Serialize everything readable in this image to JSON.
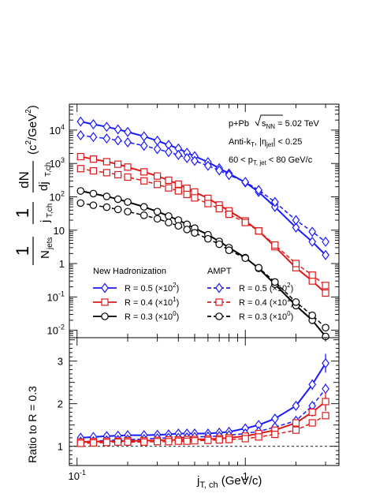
{
  "chart_data": [
    {
      "type": "line",
      "panel": "top",
      "x": [
        0.105,
        0.125,
        0.15,
        0.175,
        0.2,
        0.25,
        0.3,
        0.35,
        0.4,
        0.45,
        0.5,
        0.6,
        0.7,
        0.8,
        1.0,
        1.2,
        1.5,
        2.0,
        2.5,
        3.0
      ],
      "xscale": "log",
      "yscale": "log",
      "xlim": [
        0.09,
        3.6
      ],
      "ylim": [
        0.006,
        60000
      ],
      "ylabel_parts": {
        "one": "1",
        "njets": "N",
        "njets_sub": "jets",
        "j": "j",
        "j_sub": "T,ch",
        "dn": "dN",
        "dj": "dj",
        "dj_sub": "T,ch",
        "units": "(c",
        "units_sup": "2",
        "units_mid": "/GeV",
        "units_sup2": "2",
        "units_end": ")"
      },
      "yticks": [
        {
          "value": 0.01,
          "base": "10",
          "exp": "-2"
        },
        {
          "value": 0.1,
          "base": "10",
          "exp": "-1"
        },
        {
          "value": 1,
          "base": "1",
          "exp": ""
        },
        {
          "value": 10,
          "base": "10",
          "exp": ""
        },
        {
          "value": 100,
          "base": "10",
          "exp": "2"
        },
        {
          "value": 1000,
          "base": "10",
          "exp": "3"
        },
        {
          "value": 10000,
          "base": "10",
          "exp": "4"
        }
      ],
      "annotations": {
        "system": "p+Pb",
        "sqrt_label": "s",
        "sqrt_sub": "NN",
        "energy": "= 5.02 TeV",
        "algo": "Anti-k",
        "algo_sub": "T",
        "eta_open": ", |η",
        "eta_sub": "jet",
        "eta_close": "| < 0.25",
        "pt_low": "60 < p",
        "pt_sub": "T, jet",
        "pt_high": "< 80 GeV/c"
      },
      "legend": {
        "group_a": "New Hadronization",
        "group_b": "AMPT",
        "entries_a": [
          {
            "label": "R = 0.5 (×10",
            "sup": "2",
            "close": ")"
          },
          {
            "label": "R = 0.4 (×10",
            "sup": "1",
            "close": ")"
          },
          {
            "label": "R = 0.3 (×10",
            "sup": "0",
            "close": ")"
          }
        ],
        "entries_b": [
          {
            "label": "R = 0.5 (×10",
            "sup": "2",
            "close": ")"
          },
          {
            "label": "R = 0.4 (×10",
            "sup": "1",
            "close": ")"
          },
          {
            "label": "R = 0.3 (×10",
            "sup": "0",
            "close": ")"
          }
        ]
      },
      "series": [
        {
          "model": "New Hadronization",
          "R": "0.5",
          "color": "#1a1aff",
          "marker": "diamond",
          "dashed": false,
          "values": [
            18000,
            15000,
            12500,
            10500,
            8800,
            6500,
            4800,
            3600,
            2800,
            2100,
            1650,
            1100,
            720,
            500,
            270,
            140,
            50,
            12,
            4.5,
            1.8
          ]
        },
        {
          "model": "AMPT",
          "R": "0.5",
          "color": "#1a1aff",
          "marker": "diamond",
          "dashed": true,
          "values": [
            7000,
            6200,
            5600,
            4900,
            4300,
            3400,
            2700,
            2200,
            1800,
            1450,
            1200,
            850,
            620,
            450,
            280,
            160,
            70,
            20,
            9,
            4.5
          ]
        },
        {
          "model": "New Hadronization",
          "R": "0.4",
          "color": "#e01818",
          "marker": "square",
          "dashed": false,
          "values": [
            1600,
            1350,
            1130,
            950,
            780,
            560,
            420,
            315,
            240,
            180,
            140,
            90,
            57,
            38,
            19,
            9.5,
            3.2,
            0.75,
            0.3,
            0.13
          ]
        },
        {
          "model": "AMPT",
          "R": "0.4",
          "color": "#e01818",
          "marker": "square",
          "dashed": true,
          "values": [
            700,
            600,
            530,
            460,
            390,
            300,
            235,
            185,
            150,
            118,
            93,
            63,
            44,
            30,
            17,
            9.5,
            3.6,
            1.0,
            0.45,
            0.22
          ]
        },
        {
          "model": "New Hadronization",
          "R": "0.3",
          "color": "#000000",
          "marker": "circle",
          "dashed": false,
          "values": [
            150,
            125,
            103,
            85,
            70,
            50,
            36,
            26.5,
            20,
            15,
            11.5,
            7.3,
            4.6,
            3.0,
            1.5,
            0.72,
            0.24,
            0.055,
            0.02,
            0.0065
          ]
        },
        {
          "model": "AMPT",
          "R": "0.3",
          "color": "#000000",
          "marker": "circle",
          "dashed": true,
          "values": [
            65,
            56,
            49,
            42,
            36,
            28,
            22,
            17,
            13.5,
            10.5,
            8.3,
            5.5,
            3.8,
            2.5,
            1.45,
            0.75,
            0.28,
            0.07,
            0.028,
            0.012
          ]
        }
      ]
    },
    {
      "type": "line",
      "panel": "bottom",
      "x": [
        0.105,
        0.125,
        0.15,
        0.175,
        0.2,
        0.25,
        0.3,
        0.35,
        0.4,
        0.45,
        0.5,
        0.6,
        0.7,
        0.8,
        1.0,
        1.2,
        1.5,
        2.0,
        2.5,
        3.0
      ],
      "xscale": "log",
      "xlim": [
        0.09,
        3.6
      ],
      "ylim": [
        0.55,
        3.55
      ],
      "ylabel": "Ratio to R = 0.3",
      "xlabel_main": "j",
      "xlabel_sub": "T, ch",
      "xlabel_units": "(GeV/c)",
      "yticks": [
        "1",
        "2",
        "3"
      ],
      "xticks": [
        {
          "value": 0.1,
          "base": "10",
          "exp": "-1"
        },
        {
          "value": 1,
          "base": "1",
          "exp": ""
        }
      ],
      "reference_line": 1,
      "series": [
        {
          "model": "New Hadronization",
          "R": "0.5",
          "color": "#1a1aff",
          "marker": "diamond",
          "dashed": false,
          "values": [
            1.2,
            1.22,
            1.24,
            1.25,
            1.26,
            1.26,
            1.27,
            1.28,
            1.3,
            1.3,
            1.3,
            1.3,
            1.32,
            1.34,
            1.42,
            1.5,
            1.65,
            1.95,
            2.45,
            2.95
          ],
          "errors": [
            0.02,
            0.02,
            0.02,
            0.02,
            0.02,
            0.02,
            0.02,
            0.02,
            0.02,
            0.02,
            0.02,
            0.02,
            0.03,
            0.03,
            0.04,
            0.05,
            0.06,
            0.08,
            0.12,
            0.22
          ]
        },
        {
          "model": "AMPT",
          "R": "0.5",
          "color": "#1a1aff",
          "marker": "diamond",
          "dashed": true,
          "values": [
            1.11,
            1.12,
            1.14,
            1.15,
            1.16,
            1.17,
            1.19,
            1.2,
            1.2,
            1.21,
            1.22,
            1.23,
            1.24,
            1.26,
            1.3,
            1.35,
            1.45,
            1.6,
            1.95,
            2.35
          ],
          "errors": [
            0.02,
            0.02,
            0.02,
            0.02,
            0.02,
            0.02,
            0.02,
            0.02,
            0.02,
            0.02,
            0.02,
            0.02,
            0.02,
            0.03,
            0.03,
            0.04,
            0.05,
            0.06,
            0.09,
            0.12
          ]
        },
        {
          "model": "New Hadronization",
          "R": "0.4",
          "color": "#e01818",
          "marker": "square",
          "dashed": false,
          "values": [
            1.1,
            1.11,
            1.12,
            1.12,
            1.13,
            1.13,
            1.14,
            1.15,
            1.15,
            1.16,
            1.16,
            1.17,
            1.18,
            1.2,
            1.24,
            1.3,
            1.38,
            1.55,
            1.8,
            2.05
          ],
          "errors": [
            0.02,
            0.02,
            0.02,
            0.02,
            0.02,
            0.02,
            0.02,
            0.02,
            0.02,
            0.02,
            0.02,
            0.02,
            0.02,
            0.03,
            0.03,
            0.04,
            0.05,
            0.06,
            0.1,
            0.22
          ]
        },
        {
          "model": "AMPT",
          "R": "0.4",
          "color": "#e01818",
          "marker": "square",
          "dashed": true,
          "values": [
            1.07,
            1.08,
            1.09,
            1.1,
            1.1,
            1.1,
            1.11,
            1.11,
            1.12,
            1.12,
            1.13,
            1.14,
            1.15,
            1.16,
            1.18,
            1.22,
            1.28,
            1.38,
            1.55,
            1.72
          ],
          "errors": [
            0.02,
            0.02,
            0.02,
            0.02,
            0.02,
            0.02,
            0.02,
            0.02,
            0.02,
            0.02,
            0.02,
            0.02,
            0.02,
            0.02,
            0.03,
            0.03,
            0.04,
            0.05,
            0.06,
            0.08
          ]
        }
      ]
    }
  ]
}
